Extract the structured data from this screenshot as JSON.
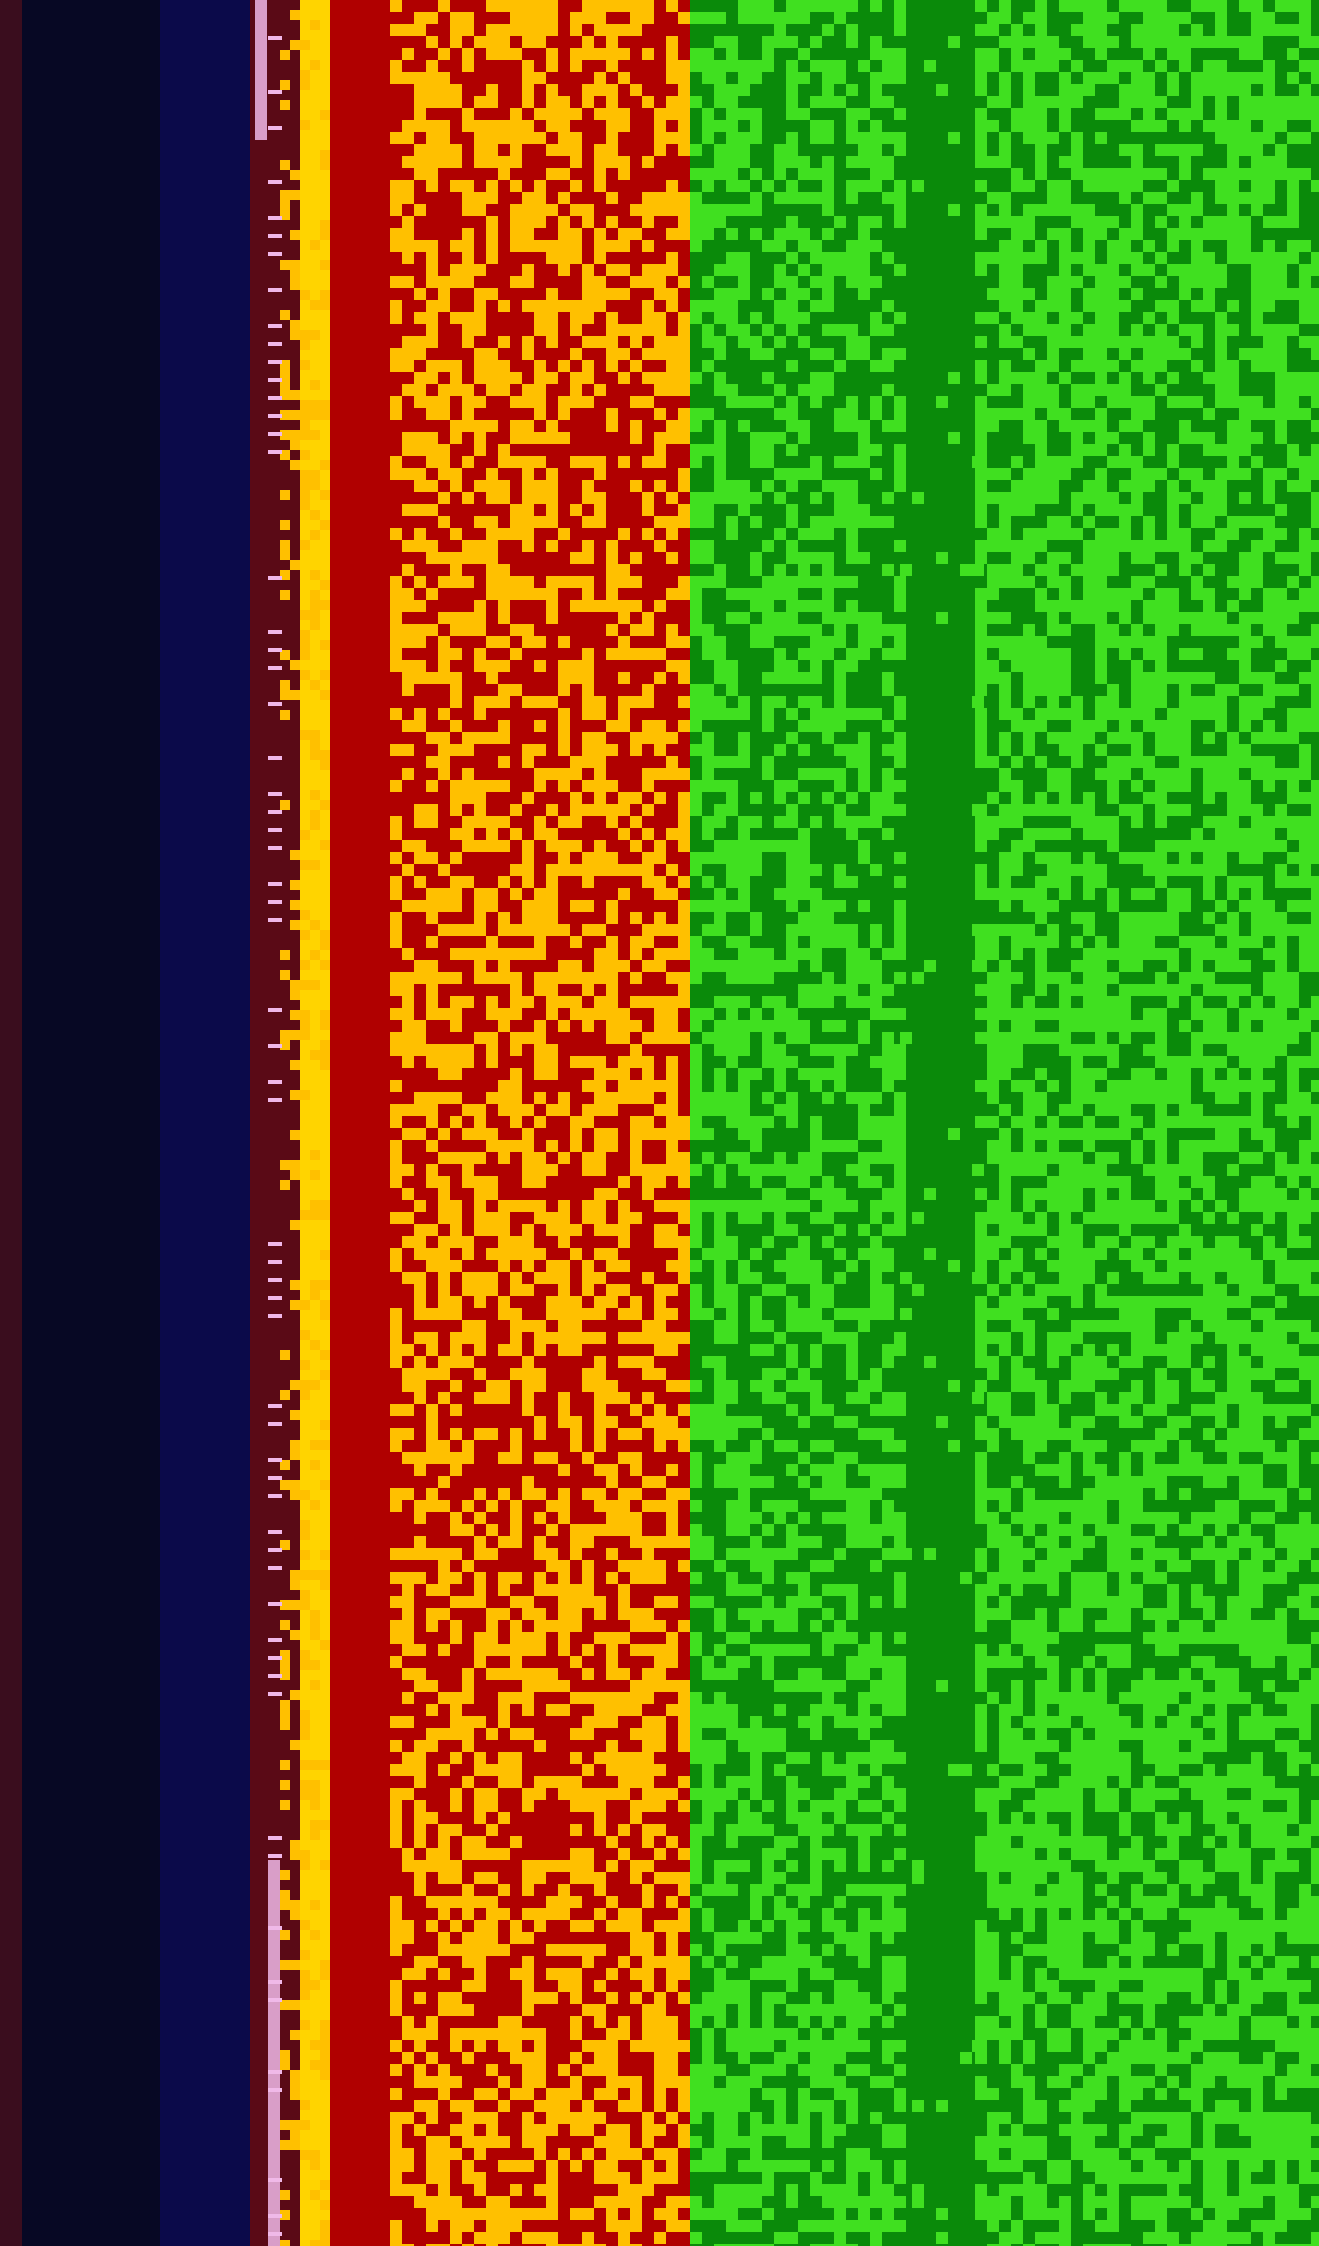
{
  "screen": {
    "description_visible_text": "",
    "colors": {
      "edge": "#3a0d1e",
      "dark": "#070824",
      "navy": "#0b0a4a",
      "maroon": "#5a0a16",
      "yellow": "#ffd400",
      "red": "#b00000",
      "orange_light": "#ffc000",
      "green_dark": "#0a8a0a",
      "green_bright": "#40e020",
      "pink_stripe": "#f0b8e8"
    }
  }
}
